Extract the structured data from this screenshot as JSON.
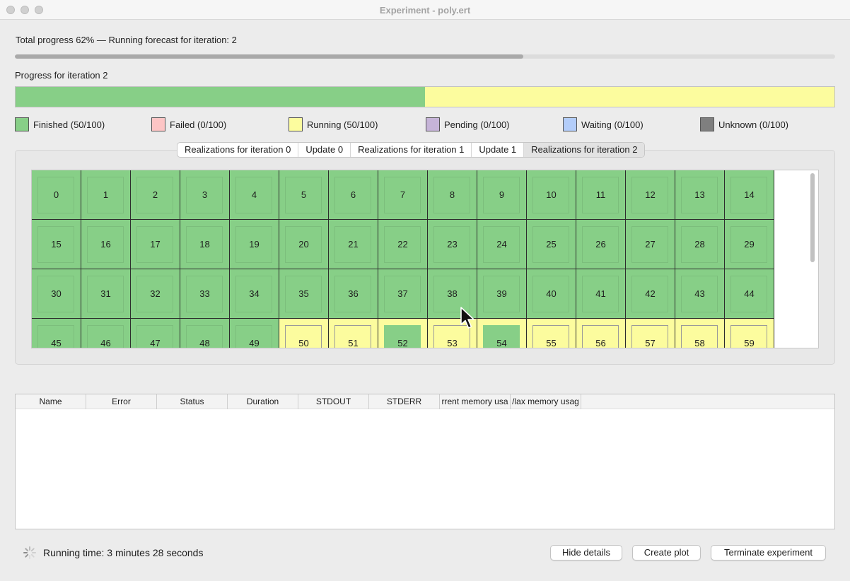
{
  "window": {
    "title": "Experiment - poly.ert"
  },
  "total_progress": {
    "text": "Total progress 62% — Running forecast for iteration: 2",
    "value": 0.62
  },
  "iteration_progress": {
    "label": "Progress for iteration 2",
    "finished_fraction": 0.5,
    "running_fraction": 0.5
  },
  "legend": [
    {
      "label": "Finished (50/100)",
      "color": "#87cf87"
    },
    {
      "label": "Failed (0/100)",
      "color": "#fdc5c5"
    },
    {
      "label": "Running (50/100)",
      "color": "#fcfc9e"
    },
    {
      "label": "Pending (0/100)",
      "color": "#c6b4d8"
    },
    {
      "label": "Waiting (0/100)",
      "color": "#b3cdfa"
    },
    {
      "label": "Unknown (0/100)",
      "color": "#7f7f7f"
    }
  ],
  "tabs": [
    {
      "label": "Realizations for iteration 0"
    },
    {
      "label": "Update 0"
    },
    {
      "label": "Realizations for iteration 1"
    },
    {
      "label": "Update 1"
    },
    {
      "label": "Realizations for iteration 2",
      "active": true
    }
  ],
  "realizations": {
    "colors": {
      "finished": "#87cf87",
      "running": "#fcfc9e"
    },
    "cells": [
      {
        "id": "0",
        "state": "finished"
      },
      {
        "id": "1",
        "state": "finished"
      },
      {
        "id": "2",
        "state": "finished"
      },
      {
        "id": "3",
        "state": "finished"
      },
      {
        "id": "4",
        "state": "finished"
      },
      {
        "id": "5",
        "state": "finished"
      },
      {
        "id": "6",
        "state": "finished"
      },
      {
        "id": "7",
        "state": "finished"
      },
      {
        "id": "8",
        "state": "finished"
      },
      {
        "id": "9",
        "state": "finished"
      },
      {
        "id": "10",
        "state": "finished"
      },
      {
        "id": "11",
        "state": "finished"
      },
      {
        "id": "12",
        "state": "finished"
      },
      {
        "id": "13",
        "state": "finished"
      },
      {
        "id": "14",
        "state": "finished"
      },
      {
        "id": "15",
        "state": "finished"
      },
      {
        "id": "16",
        "state": "finished"
      },
      {
        "id": "17",
        "state": "finished"
      },
      {
        "id": "18",
        "state": "finished"
      },
      {
        "id": "19",
        "state": "finished"
      },
      {
        "id": "20",
        "state": "finished"
      },
      {
        "id": "21",
        "state": "finished"
      },
      {
        "id": "22",
        "state": "finished"
      },
      {
        "id": "23",
        "state": "finished"
      },
      {
        "id": "24",
        "state": "finished"
      },
      {
        "id": "25",
        "state": "finished"
      },
      {
        "id": "26",
        "state": "finished"
      },
      {
        "id": "27",
        "state": "finished"
      },
      {
        "id": "28",
        "state": "finished"
      },
      {
        "id": "29",
        "state": "finished"
      },
      {
        "id": "30",
        "state": "finished"
      },
      {
        "id": "31",
        "state": "finished"
      },
      {
        "id": "32",
        "state": "finished"
      },
      {
        "id": "33",
        "state": "finished"
      },
      {
        "id": "34",
        "state": "finished"
      },
      {
        "id": "35",
        "state": "finished"
      },
      {
        "id": "36",
        "state": "finished"
      },
      {
        "id": "37",
        "state": "finished"
      },
      {
        "id": "38",
        "state": "finished"
      },
      {
        "id": "39",
        "state": "finished"
      },
      {
        "id": "40",
        "state": "finished"
      },
      {
        "id": "41",
        "state": "finished"
      },
      {
        "id": "42",
        "state": "finished"
      },
      {
        "id": "43",
        "state": "finished"
      },
      {
        "id": "44",
        "state": "finished"
      },
      {
        "id": "45",
        "state": "finished"
      },
      {
        "id": "46",
        "state": "finished"
      },
      {
        "id": "47",
        "state": "finished"
      },
      {
        "id": "48",
        "state": "finished"
      },
      {
        "id": "49",
        "state": "finished"
      },
      {
        "id": "50",
        "state": "running",
        "inner": "running"
      },
      {
        "id": "51",
        "state": "running",
        "inner": "running"
      },
      {
        "id": "52",
        "state": "running",
        "inner": "finished"
      },
      {
        "id": "53",
        "state": "running",
        "inner": "running"
      },
      {
        "id": "54",
        "state": "running",
        "inner": "finished"
      },
      {
        "id": "55",
        "state": "running",
        "inner": "running"
      },
      {
        "id": "56",
        "state": "running",
        "inner": "running"
      },
      {
        "id": "57",
        "state": "running",
        "inner": "running"
      },
      {
        "id": "58",
        "state": "running",
        "inner": "running"
      },
      {
        "id": "59",
        "state": "running",
        "inner": "running"
      }
    ]
  },
  "job_table": {
    "columns": [
      "Name",
      "Error",
      "Status",
      "Duration",
      "STDOUT",
      "STDERR",
      "rrent memory usa",
      "/lax memory usag"
    ]
  },
  "footer": {
    "running_time": "Running time: 3 minutes 28 seconds",
    "hide_details": "Hide details",
    "create_plot": "Create plot",
    "terminate": "Terminate experiment"
  }
}
